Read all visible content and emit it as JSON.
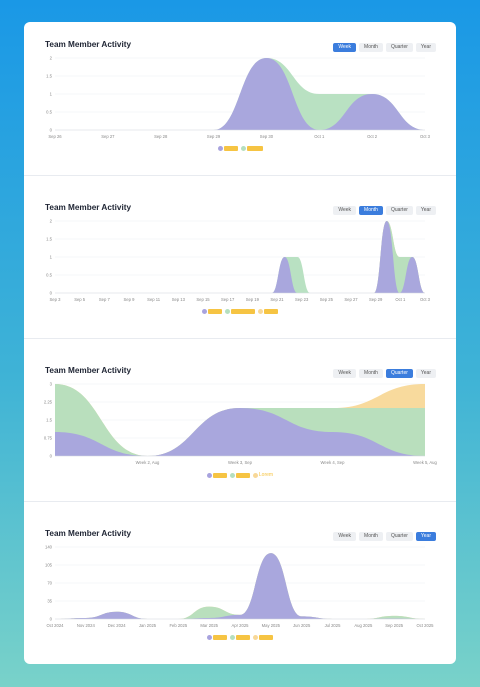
{
  "page": {
    "background_gradient": [
      "#1a98e6",
      "#79d2c9"
    ]
  },
  "colors": {
    "purple": "#a8a3de",
    "green": "#b5dfbf",
    "yellow": "#f8d898",
    "accent": "#3b7ddd"
  },
  "panels": [
    {
      "id": "week",
      "title": "Team Member Activity",
      "buttons": [
        "Week",
        "Month",
        "Quarter",
        "Year"
      ],
      "active": "Week",
      "chart_data": {
        "type": "area",
        "x": [
          "Sep 26",
          "Sep 27",
          "Sep 28",
          "Sep 29",
          "Sep 30",
          "Oct 1",
          "Oct 2",
          "Oct 3"
        ],
        "xlabels": [
          "Sep 26",
          "Sep 27",
          "Sep 28",
          "Sep 29",
          "Sep 30",
          "Oct 1",
          "Oct 2",
          "Oct 3"
        ],
        "yticks": [
          "0",
          "0.5",
          "1",
          "1.5",
          "2"
        ],
        "ylim": [
          0,
          2
        ],
        "series": [
          {
            "color": "#a8a3de",
            "values": [
              0,
              0,
              0,
              0,
              2,
              0,
              1,
              0
            ]
          },
          {
            "color": "#b5dfbf",
            "values": [
              0,
              0,
              0,
              0,
              2,
              1,
              1,
              0
            ]
          }
        ],
        "legend": [
          {
            "color": "#a8a3de",
            "bar": 14
          },
          {
            "color": "#b5dfbf",
            "bar": 16
          }
        ]
      }
    },
    {
      "id": "month",
      "title": "Team Member Activity",
      "buttons": [
        "Week",
        "Month",
        "Quarter",
        "Year"
      ],
      "active": "Month",
      "chart_data": {
        "type": "area",
        "x": [
          "Sep 4",
          "Sep 5",
          "Sep 6",
          "Sep 7",
          "Sep 8",
          "Sep 9",
          "Sep 10",
          "Sep 11",
          "Sep 12",
          "Sep 13",
          "Sep 14",
          "Sep 15",
          "Sep 16",
          "Sep 17",
          "Sep 18",
          "Sep 19",
          "Sep 20",
          "Sep 21",
          "Sep 22",
          "Sep 23",
          "Sep 24",
          "Sep 25",
          "Sep 26",
          "Sep 27",
          "Sep 28",
          "Sep 29",
          "Sep 30",
          "Oct 1",
          "Oct 2",
          "Oct 3"
        ],
        "xlabels": [
          "Sep 3",
          "Sep 5",
          "Sep 7",
          "Sep 9",
          "Sep 11",
          "Sep 13",
          "Sep 15",
          "Sep 17",
          "Sep 19",
          "Sep 21",
          "Sep 23",
          "Sep 25",
          "Sep 27",
          "Sep 29",
          "Oct 1",
          "Oct 3"
        ],
        "yticks": [
          "0",
          "0.5",
          "1",
          "1.5",
          "2"
        ],
        "ylim": [
          0,
          2
        ],
        "series": [
          {
            "color": "#a8a3de",
            "values": [
              0,
              0,
              0,
              0,
              0,
              0,
              0,
              0,
              0,
              0,
              0,
              0,
              0,
              0,
              0,
              0,
              0,
              0,
              1,
              0,
              0,
              0,
              0,
              0,
              0,
              0,
              2,
              0,
              1,
              0
            ]
          },
          {
            "color": "#b5dfbf",
            "values": [
              0,
              0,
              0,
              0,
              0,
              0,
              0,
              0,
              0,
              0,
              0,
              0,
              0,
              0,
              0,
              0,
              0,
              0,
              1,
              1,
              0,
              0,
              0,
              0,
              0,
              0,
              2,
              1,
              1,
              0
            ]
          },
          {
            "color": "#f8d898",
            "values": [
              0,
              0,
              0,
              0,
              0,
              0,
              0,
              0,
              0,
              0,
              0,
              0,
              0,
              0,
              0,
              0,
              0,
              0,
              0,
              0,
              0,
              0,
              0,
              0,
              0,
              0,
              2,
              1,
              1,
              0
            ]
          }
        ],
        "legend": [
          {
            "color": "#a8a3de",
            "bar": 14
          },
          {
            "color": "#b5dfbf",
            "bar": 24
          },
          {
            "color": "#f8d898",
            "bar": 14
          }
        ]
      }
    },
    {
      "id": "quarter",
      "title": "Team Member Activity",
      "buttons": [
        "Week",
        "Month",
        "Quarter",
        "Year"
      ],
      "active": "Quarter",
      "chart_data": {
        "type": "area",
        "x": [
          "Week 1, Aug",
          "Week 2, Aug",
          "Week 3, Sep",
          "Week 4, Sep",
          "Week 5, Aug"
        ],
        "xlabels": [
          "",
          "Week 2, Aug",
          "Week 3, Sep",
          "Week 4, Sep",
          "Week 5, Aug"
        ],
        "yticks": [
          "0",
          "0.75",
          "1.5",
          "2.25",
          "3"
        ],
        "ylim": [
          0,
          3
        ],
        "series": [
          {
            "color": "#a8a3de",
            "values": [
              1,
              0,
              2,
              1,
              0
            ]
          },
          {
            "color": "#b5dfbf",
            "values": [
              3,
              0,
              2,
              2,
              2
            ]
          },
          {
            "color": "#f8d898",
            "values": [
              3,
              0,
              2,
              2,
              3
            ]
          }
        ],
        "legend": [
          {
            "color": "#a8a3de",
            "bar": 14
          },
          {
            "color": "#b5dfbf",
            "bar": 14
          },
          {
            "color": "#f8d898",
            "bar": 0,
            "text": "Lorem"
          }
        ]
      }
    },
    {
      "id": "year",
      "title": "Team Member Activity",
      "buttons": [
        "Week",
        "Month",
        "Quarter",
        "Year"
      ],
      "active": "Year",
      "chart_data": {
        "type": "area",
        "x": [
          "Oct 2024",
          "Nov 2024",
          "Dec 2024",
          "Jan 2025",
          "Feb 2025",
          "Mar 2025",
          "Apr 2025",
          "May 2025",
          "Jun 2025",
          "Jul 2025",
          "Aug 2025",
          "Sep 2025",
          "Oct 2025"
        ],
        "xlabels": [
          "Oct 2024",
          "Nov 2024",
          "Dec 2024",
          "Jan 2025",
          "Feb 2025",
          "Mar 2025",
          "Apr 2025",
          "May 2025",
          "Jun 2025",
          "Jul 2025",
          "Aug 2025",
          "Sep 2025",
          "Oct 2025"
        ],
        "yticks": [
          "0",
          "35",
          "70",
          "105",
          "140"
        ],
        "ylim": [
          0,
          140
        ],
        "series": [
          {
            "color": "#a8a3de",
            "values": [
              0,
              2,
              14,
              0,
              0,
              2,
              8,
              128,
              5,
              0,
              0,
              1,
              0
            ]
          },
          {
            "color": "#b5dfbf",
            "values": [
              0,
              2,
              14,
              0,
              0,
              24,
              8,
              128,
              5,
              0,
              0,
              6,
              0
            ]
          },
          {
            "color": "#f8d898",
            "values": [
              0,
              2,
              14,
              0,
              0,
              24,
              8,
              128,
              5,
              0,
              0,
              6,
              0
            ]
          }
        ],
        "legend": [
          {
            "color": "#a8a3de",
            "bar": 14
          },
          {
            "color": "#b5dfbf",
            "bar": 14
          },
          {
            "color": "#f8d898",
            "bar": 14
          }
        ]
      }
    }
  ]
}
